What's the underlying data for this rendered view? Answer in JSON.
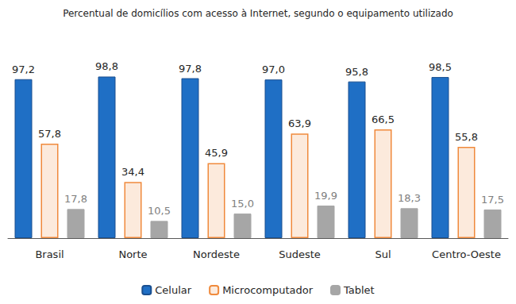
{
  "chart_data": {
    "type": "bar",
    "title": "Percentual de domicílios com acesso à Internet, segundo o equipamento utilizado",
    "categories": [
      "Brasil",
      "Norte",
      "Nordeste",
      "Sudeste",
      "Sul",
      "Centro-Oeste"
    ],
    "series": [
      {
        "name": "Celular",
        "color": "#1f6fc5",
        "values": [
          97.2,
          98.8,
          97.8,
          97.0,
          95.8,
          98.5
        ],
        "value_labels": [
          "97,2",
          "98,8",
          "97,8",
          "97,0",
          "95,8",
          "98,5"
        ]
      },
      {
        "name": "Microcomputador",
        "color": "#f08a3c",
        "marker": "outline",
        "values": [
          57.8,
          34.4,
          45.9,
          63.9,
          66.5,
          55.8
        ],
        "value_labels": [
          "57,8",
          "34,4",
          "45,9",
          "63,9",
          "66,5",
          "55,8"
        ]
      },
      {
        "name": "Tablet",
        "color": "#a6a6a6",
        "values": [
          17.8,
          10.5,
          15.0,
          19.9,
          18.3,
          17.5
        ],
        "value_labels": [
          "17,8",
          "10,5",
          "15,0",
          "19,9",
          "18,3",
          "17,5"
        ]
      }
    ],
    "ylim": [
      0,
      100
    ],
    "yticks": [
      0,
      100
    ],
    "grid": false,
    "legend": "bottom",
    "data_labels": true,
    "tick_labels": "x"
  }
}
